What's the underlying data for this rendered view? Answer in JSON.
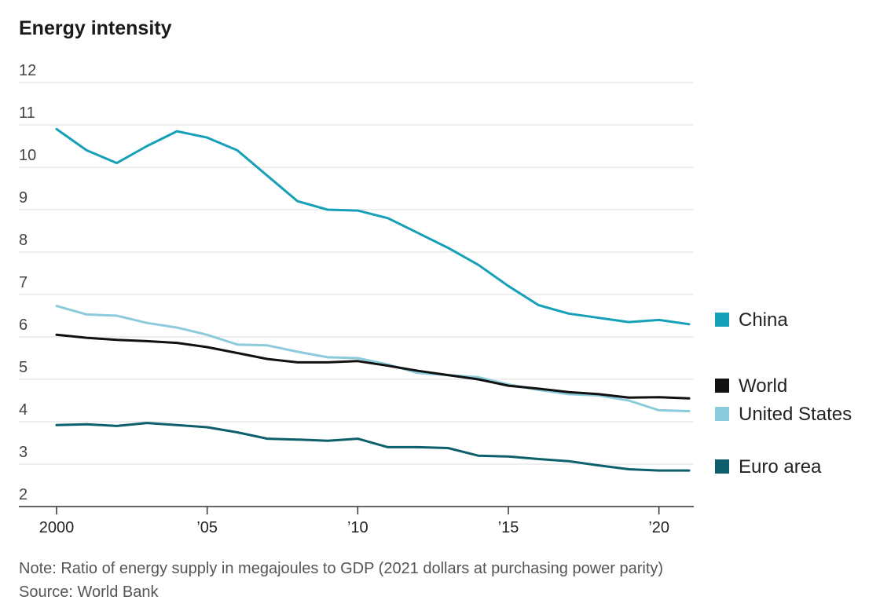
{
  "chart_data": {
    "type": "line",
    "title": "Energy intensity",
    "x": [
      2000,
      2001,
      2002,
      2003,
      2004,
      2005,
      2006,
      2007,
      2008,
      2009,
      2010,
      2011,
      2012,
      2013,
      2014,
      2015,
      2016,
      2017,
      2018,
      2019,
      2020,
      2021
    ],
    "xticks": [
      {
        "value": 2000,
        "label": "2000"
      },
      {
        "value": 2005,
        "label": "’05"
      },
      {
        "value": 2010,
        "label": "’10"
      },
      {
        "value": 2015,
        "label": "’15"
      },
      {
        "value": 2020,
        "label": "’20"
      }
    ],
    "yticks": [
      2,
      3,
      4,
      5,
      6,
      7,
      8,
      9,
      10,
      11,
      12
    ],
    "ylim": [
      2,
      12
    ],
    "xlim": [
      2000,
      2021
    ],
    "grid": true,
    "legend": "right",
    "series": [
      {
        "name": "China",
        "color": "#16a0b8",
        "values": [
          10.9,
          10.4,
          10.1,
          10.5,
          10.85,
          10.7,
          10.4,
          9.8,
          9.2,
          9.0,
          8.98,
          8.8,
          8.45,
          8.1,
          7.7,
          7.2,
          6.75,
          6.55,
          6.45,
          6.35,
          6.4,
          6.3
        ]
      },
      {
        "name": "World",
        "color": "#111111",
        "values": [
          6.05,
          5.98,
          5.93,
          5.9,
          5.86,
          5.76,
          5.62,
          5.48,
          5.4,
          5.4,
          5.43,
          5.32,
          5.2,
          5.1,
          5.0,
          4.85,
          4.78,
          4.7,
          4.65,
          4.57,
          4.58,
          4.55
        ]
      },
      {
        "name": "United States",
        "color": "#8ccbdb",
        "values": [
          6.73,
          6.53,
          6.5,
          6.33,
          6.22,
          6.05,
          5.82,
          5.8,
          5.65,
          5.52,
          5.5,
          5.35,
          5.15,
          5.1,
          5.05,
          4.88,
          4.75,
          4.65,
          4.62,
          4.5,
          4.27,
          4.25
        ]
      },
      {
        "name": "Euro area",
        "color": "#0d5f6b",
        "values": [
          3.92,
          3.94,
          3.9,
          3.97,
          3.92,
          3.87,
          3.75,
          3.6,
          3.58,
          3.55,
          3.6,
          3.4,
          3.4,
          3.38,
          3.2,
          3.18,
          3.12,
          3.07,
          2.97,
          2.88,
          2.85,
          2.85
        ]
      }
    ]
  },
  "note": "Note: Ratio of energy supply in megajoules to GDP (2021 dollars at purchasing power parity)",
  "source": "Source: World Bank"
}
